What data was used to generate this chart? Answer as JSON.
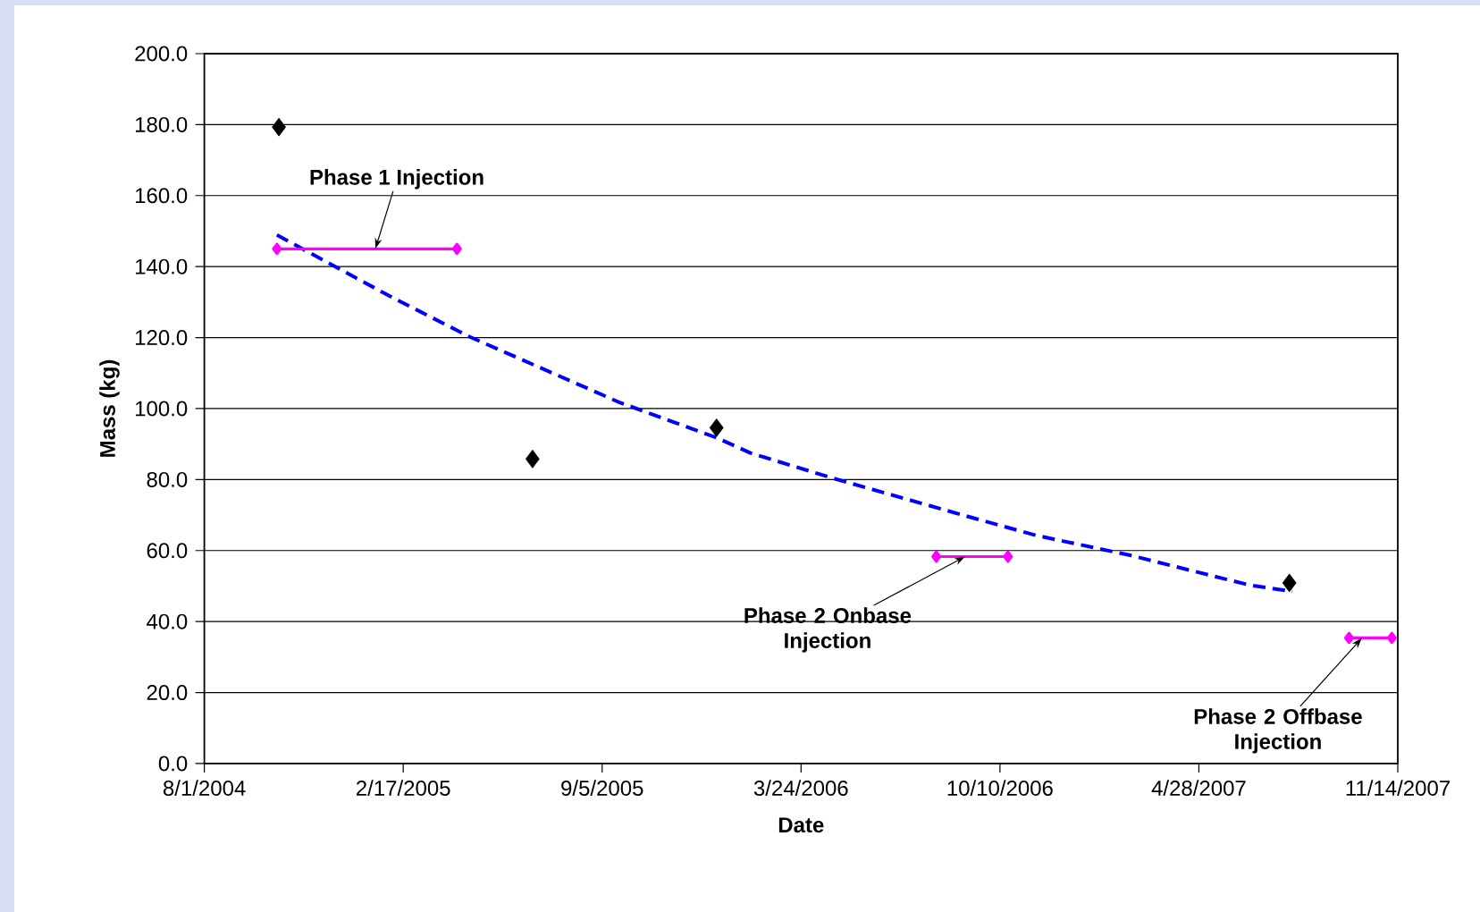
{
  "chart_data": {
    "type": "scatter",
    "xlabel": "Date",
    "ylabel": "Mass (kg)",
    "xlim": [
      "2004-08-01",
      "2007-11-14"
    ],
    "xticks": [
      {
        "value": "2004-08-01",
        "label": "8/1/2004"
      },
      {
        "value": "2005-02-17",
        "label": "2/17/2005"
      },
      {
        "value": "2005-09-05",
        "label": "9/5/2005"
      },
      {
        "value": "2006-03-24",
        "label": "3/24/2006"
      },
      {
        "value": "2006-10-10",
        "label": "10/10/2006"
      },
      {
        "value": "2007-04-28",
        "label": "4/28/2007"
      },
      {
        "value": "2007-11-14",
        "label": "11/14/2007"
      }
    ],
    "ylim": [
      0,
      200
    ],
    "yticks": [
      {
        "value": 0,
        "label": "0.0"
      },
      {
        "value": 20,
        "label": "20.0"
      },
      {
        "value": 40,
        "label": "40.0"
      },
      {
        "value": 60,
        "label": "60.0"
      },
      {
        "value": 80,
        "label": "80.0"
      },
      {
        "value": 100,
        "label": "100.0"
      },
      {
        "value": 120,
        "label": "120.0"
      },
      {
        "value": 140,
        "label": "140.0"
      },
      {
        "value": 160,
        "label": "160.0"
      },
      {
        "value": 180,
        "label": "180.0"
      },
      {
        "value": 200,
        "label": "200.0"
      }
    ],
    "grid": "y",
    "series": [
      {
        "color": "#000000",
        "marker": "diamond",
        "x": [
          "2004-10-15",
          "2005-06-27",
          "2005-12-29",
          "2007-07-28"
        ],
        "values": [
          179.3,
          85.8,
          94.6,
          50.9
        ]
      },
      {
        "type": "line",
        "color": "#0000ff",
        "marker": "none",
        "line_style": "dashed",
        "x": [
          "2004-10-13",
          "2005-02-04",
          "2005-04-25",
          "2005-09-22",
          "2005-12-30",
          "2006-02-01",
          "2006-04-26",
          "2006-09-04",
          "2006-11-15",
          "2007-02-19",
          "2007-06-19",
          "2007-07-31"
        ],
        "values": [
          148.9,
          131.6,
          120.2,
          101.8,
          91.7,
          87.5,
          80.3,
          69.9,
          64.3,
          58.6,
          50.2,
          48.5
        ]
      },
      {
        "type": "line",
        "color": "#ff00ff",
        "marker": "diamond",
        "line_style": "solid",
        "x": [
          "2004-10-13",
          "2005-04-12"
        ],
        "values": [
          145,
          145
        ]
      },
      {
        "type": "line",
        "color": "#ff00ff",
        "marker": "diamond",
        "line_style": "solid",
        "x": [
          "2006-08-07",
          "2006-10-18"
        ],
        "values": [
          58.3,
          58.3
        ]
      },
      {
        "type": "line",
        "color": "#ff00ff",
        "marker": "diamond",
        "line_style": "solid",
        "x": [
          "2007-09-26",
          "2007-11-08"
        ],
        "values": [
          35.4,
          35.4
        ]
      }
    ],
    "annotations": [
      {
        "text": "Phase 1 Injection",
        "x": "2005-01-20",
        "y": 145
      },
      {
        "text": "Phase 2 Onbase Injection",
        "x": "2006-09-05",
        "y": 58.3
      },
      {
        "text": "Phase 2 Offbase Injection",
        "x": "2007-10-09",
        "y": 35.4
      }
    ]
  }
}
